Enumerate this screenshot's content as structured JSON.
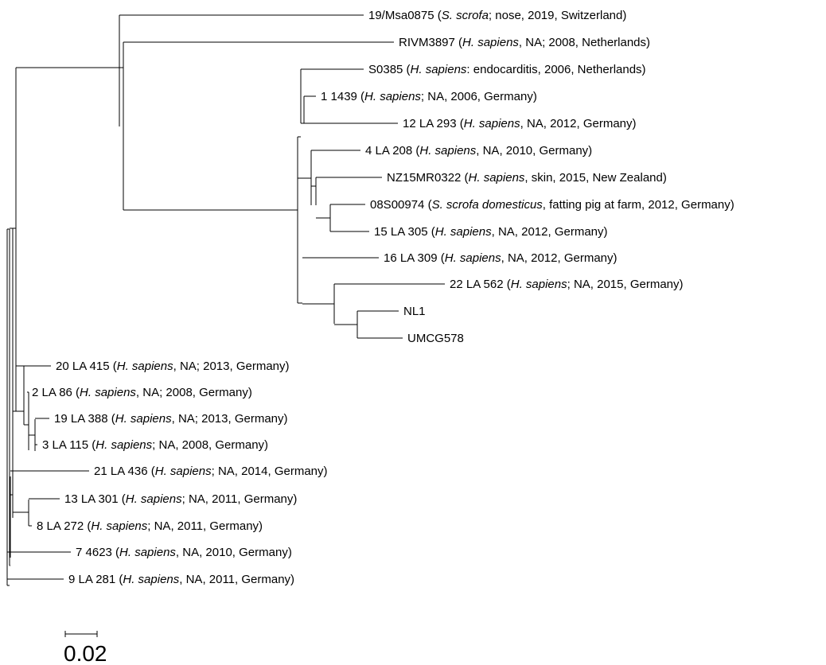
{
  "tree": {
    "leaves": [
      {
        "id": "msa0875",
        "parts": [
          {
            "t": "19/Msa0875 ("
          },
          {
            "t": "S. scrofa",
            "i": true
          },
          {
            "t": "; nose, 2019, Switzerland)"
          }
        ]
      },
      {
        "id": "rivm3897",
        "parts": [
          {
            "t": "RIVM3897 ("
          },
          {
            "t": "H. sapiens",
            "i": true
          },
          {
            "t": ", NA; 2008, Netherlands)"
          }
        ]
      },
      {
        "id": "s0385",
        "parts": [
          {
            "t": "S0385 ("
          },
          {
            "t": "H. sapiens",
            "i": true
          },
          {
            "t": ": endocarditis, 2006, Netherlands)"
          }
        ]
      },
      {
        "id": "x1439",
        "parts": [
          {
            "t": "1 1439 ("
          },
          {
            "t": "H. sapiens",
            "i": true
          },
          {
            "t": "; NA, 2006, Germany)"
          }
        ]
      },
      {
        "id": "la293",
        "parts": [
          {
            "t": "12 LA 293 ("
          },
          {
            "t": "H. sapiens",
            "i": true
          },
          {
            "t": ", NA, 2012, Germany)"
          }
        ]
      },
      {
        "id": "la208",
        "parts": [
          {
            "t": "4 LA 208 ("
          },
          {
            "t": "H. sapiens",
            "i": true
          },
          {
            "t": ", NA, 2010, Germany)"
          }
        ]
      },
      {
        "id": "nz15mr0322",
        "parts": [
          {
            "t": "NZ15MR0322 ("
          },
          {
            "t": "H. sapiens",
            "i": true
          },
          {
            "t": ", skin, 2015, New Zealand)"
          }
        ]
      },
      {
        "id": "s00974",
        "parts": [
          {
            "t": "08S00974 ("
          },
          {
            "t": "S. scrofa domesticus",
            "i": true
          },
          {
            "t": ", fatting pig at farm, 2012, Germany)"
          }
        ]
      },
      {
        "id": "la305",
        "parts": [
          {
            "t": "15 LA 305 ("
          },
          {
            "t": "H. sapiens",
            "i": true
          },
          {
            "t": ", NA, 2012, Germany)"
          }
        ]
      },
      {
        "id": "la309",
        "parts": [
          {
            "t": "16 LA 309 ("
          },
          {
            "t": "H. sapiens",
            "i": true
          },
          {
            "t": ", NA, 2012, Germany)"
          }
        ]
      },
      {
        "id": "la562",
        "parts": [
          {
            "t": "22 LA 562 ("
          },
          {
            "t": "H. sapiens",
            "i": true
          },
          {
            "t": "; NA, 2015, Germany)"
          }
        ]
      },
      {
        "id": "nl1",
        "parts": [
          {
            "t": "NL1"
          }
        ]
      },
      {
        "id": "umcg578",
        "parts": [
          {
            "t": "UMCG578"
          }
        ]
      },
      {
        "id": "la415",
        "parts": [
          {
            "t": "20 LA 415 ("
          },
          {
            "t": "H. sapiens",
            "i": true
          },
          {
            "t": ", NA; 2013, Germany)"
          }
        ]
      },
      {
        "id": "la86",
        "parts": [
          {
            "t": "2 LA 86 ("
          },
          {
            "t": "H. sapiens",
            "i": true
          },
          {
            "t": ", NA; 2008, Germany)"
          }
        ]
      },
      {
        "id": "la388",
        "parts": [
          {
            "t": "19 LA 388 ("
          },
          {
            "t": "H. sapiens",
            "i": true
          },
          {
            "t": ", NA; 2013, Germany)"
          }
        ]
      },
      {
        "id": "la115",
        "parts": [
          {
            "t": "3 LA 115 ("
          },
          {
            "t": "H. sapiens",
            "i": true
          },
          {
            "t": "; NA, 2008, Germany)"
          }
        ]
      },
      {
        "id": "la436",
        "parts": [
          {
            "t": "21 LA 436 ("
          },
          {
            "t": "H. sapiens",
            "i": true
          },
          {
            "t": "; NA, 2014, Germany)"
          }
        ]
      },
      {
        "id": "la301",
        "parts": [
          {
            "t": "13 LA 301 ("
          },
          {
            "t": "H. sapiens",
            "i": true
          },
          {
            "t": "; NA, 2011, Germany)"
          }
        ]
      },
      {
        "id": "la272",
        "parts": [
          {
            "t": "8 LA 272 ("
          },
          {
            "t": "H. sapiens",
            "i": true
          },
          {
            "t": "; NA, 2011, Germany)"
          }
        ]
      },
      {
        "id": "x4623",
        "parts": [
          {
            "t": "7 4623 ("
          },
          {
            "t": "H. sapiens",
            "i": true
          },
          {
            "t": ", NA, 2010, Germany)"
          }
        ]
      },
      {
        "id": "la281",
        "parts": [
          {
            "t": "9 LA 281 ("
          },
          {
            "t": "H. sapiens",
            "i": true
          },
          {
            "t": ", NA, 2011, Germany)"
          }
        ]
      }
    ]
  },
  "scale_bar": {
    "label": "0.02"
  }
}
